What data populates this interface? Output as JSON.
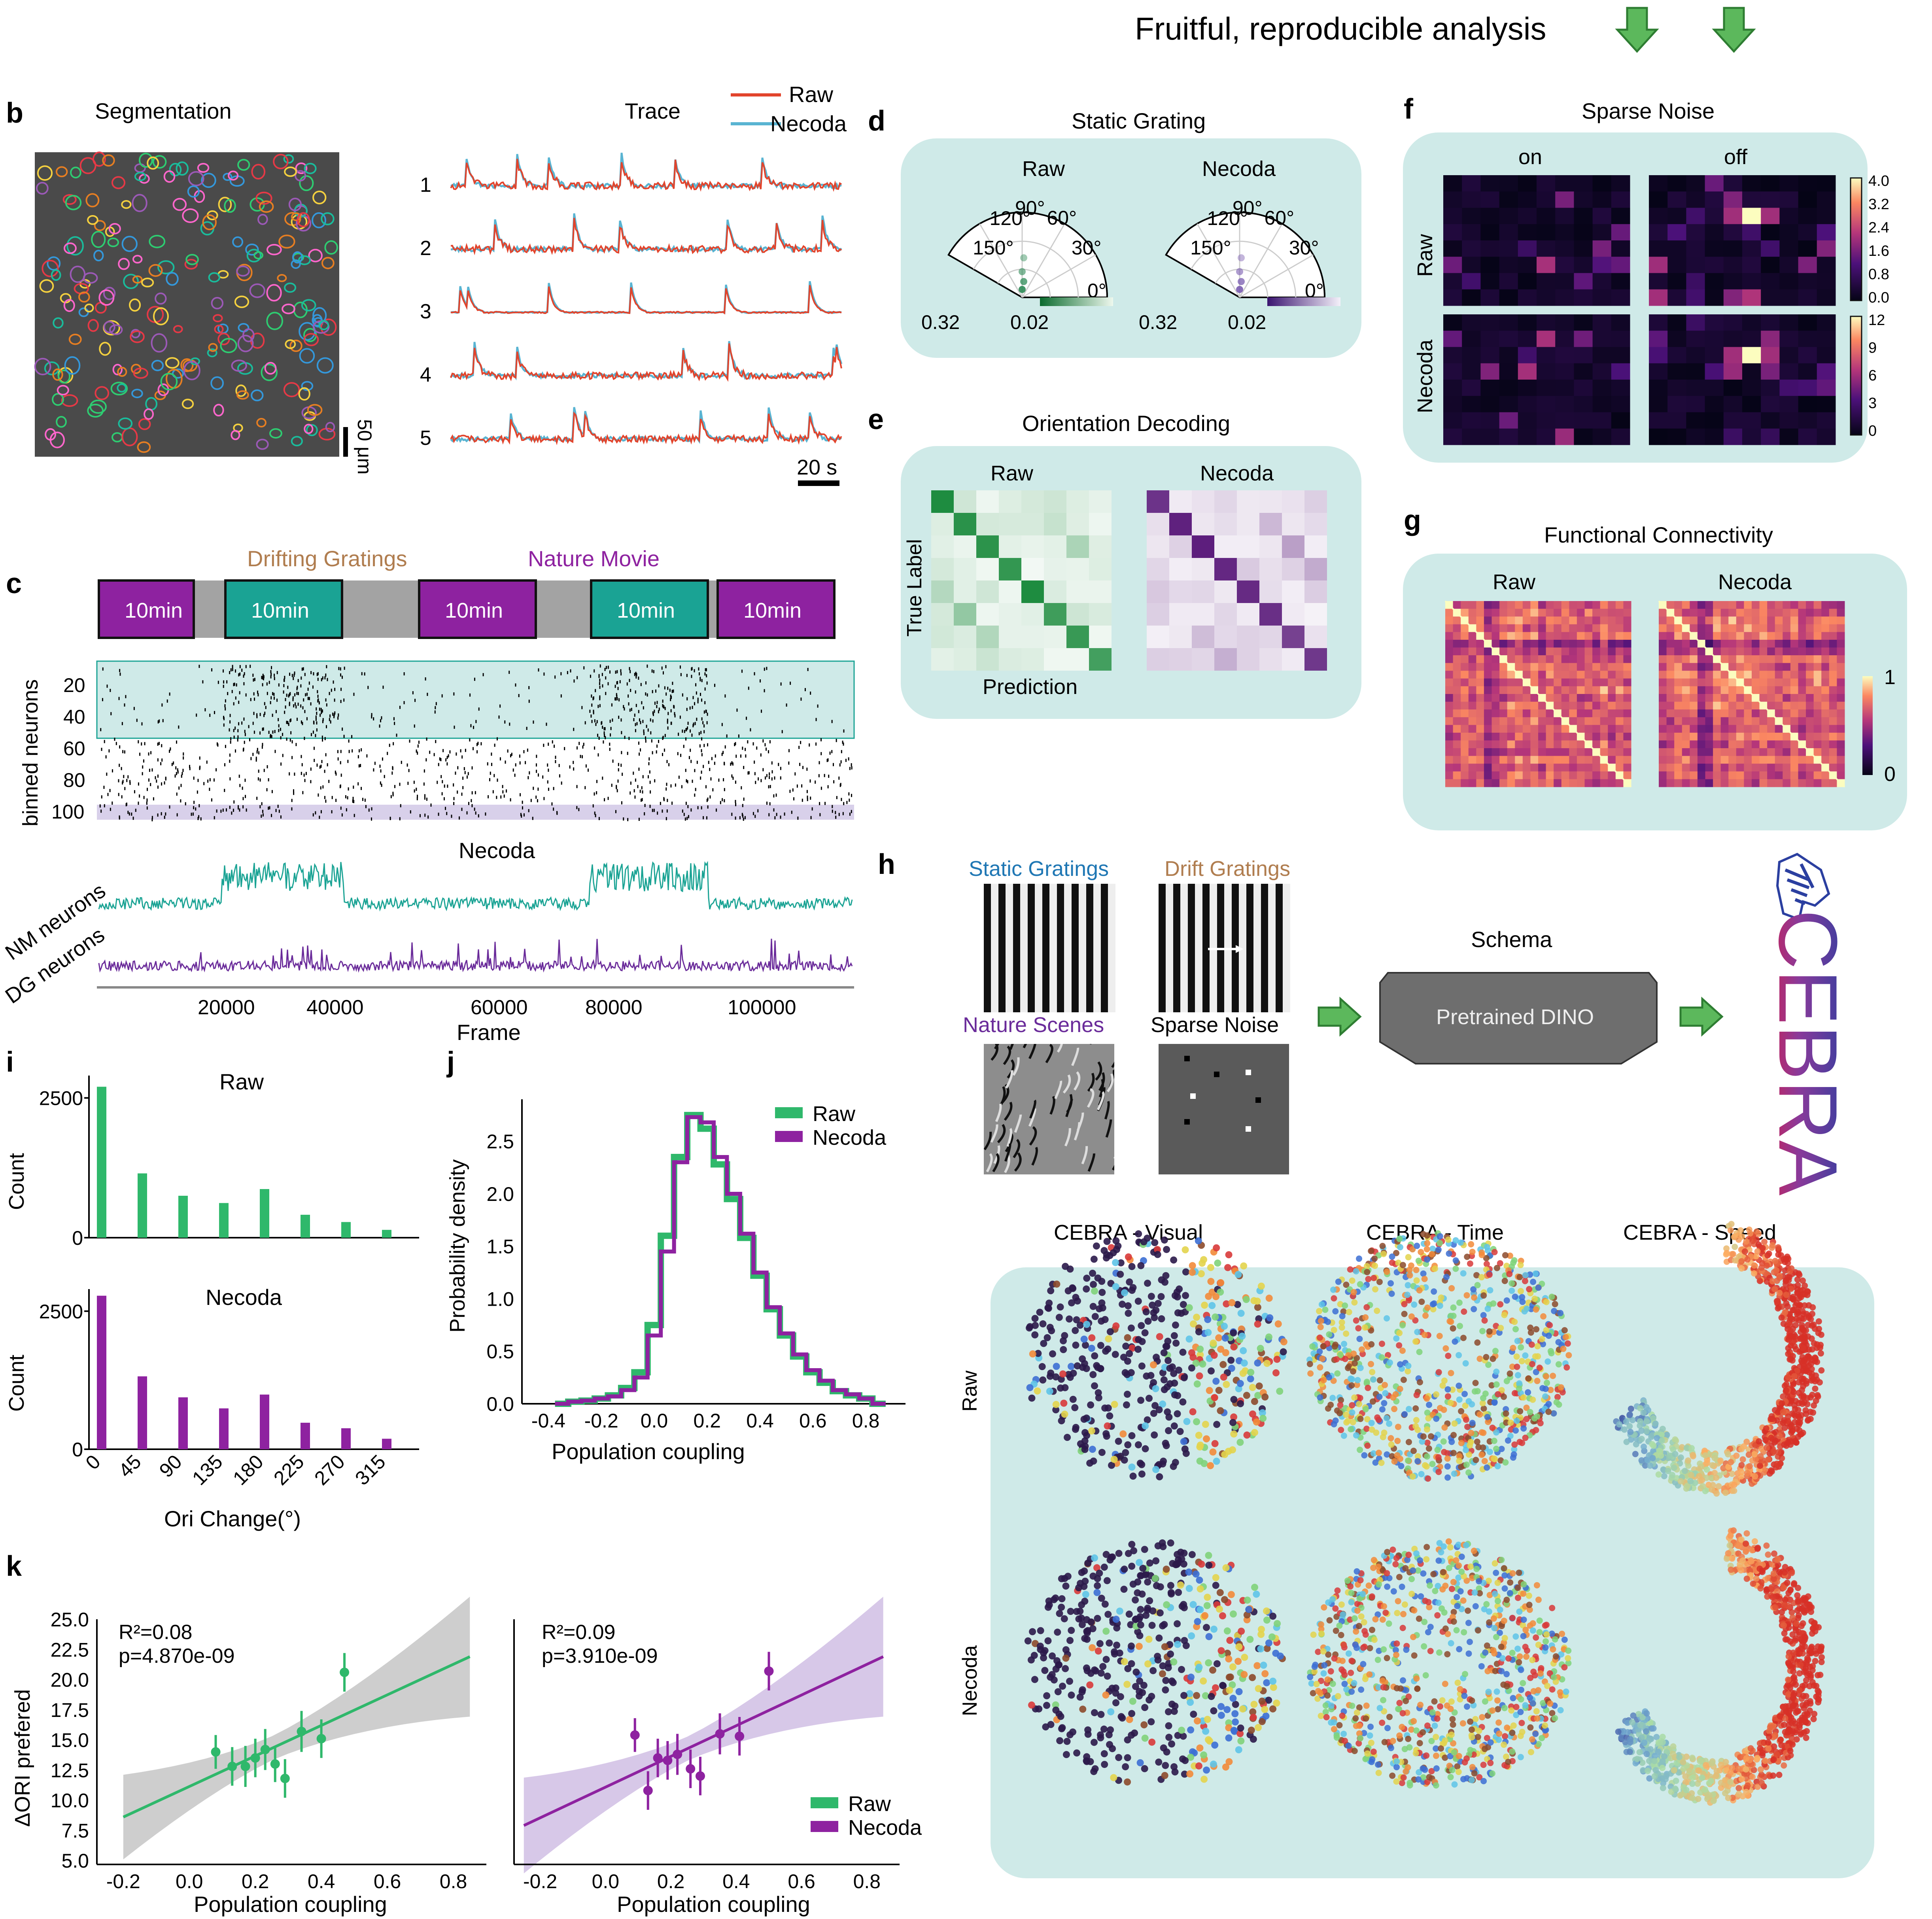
{
  "header": {
    "text": "Fruitful, reproducible analysis"
  },
  "legend_labels": {
    "raw": "Raw",
    "necoda": "Necoda"
  },
  "colors": {
    "raw_green": "#2fb86b",
    "necoda_purple": "#8e22a0",
    "panel_bg": "#cfeae8",
    "trace_red": "#e2442c",
    "trace_blue": "#59b4d2",
    "teal": "#1aa394",
    "purple": "#6a2b9a",
    "arrow_green": "#5cb85c"
  },
  "panel_b": {
    "letter": "b",
    "seg_title": "Segmentation",
    "trace_title": "Trace",
    "scalebar_um": "50 μm",
    "scalebar_s": "20 s",
    "trace_ids": [
      "1",
      "2",
      "3",
      "4",
      "5"
    ]
  },
  "panel_c": {
    "letter": "c",
    "blocks": [
      "10min",
      "10min",
      "10min",
      "10min",
      "10min"
    ],
    "drifting_label": "Drifting Gratings",
    "nature_label": "Nature Movie",
    "raster_ylabel": "binned neurons",
    "raster_yticks": [
      "20",
      "40",
      "60",
      "80",
      "100"
    ],
    "necoda_title": "Necoda",
    "nm_label": "NM neurons",
    "dg_label": "DG neurons",
    "xticks": [
      "20000",
      "40000",
      "60000",
      "80000",
      "100000"
    ],
    "xlabel": "Frame"
  },
  "panel_d": {
    "letter": "d",
    "title": "Static Grating",
    "angles": [
      "0°",
      "30°",
      "60°",
      "90°",
      "120°",
      "150°"
    ],
    "radial": [
      "0.32",
      "0.02"
    ]
  },
  "panel_e": {
    "letter": "e",
    "title": "Orientation Decoding",
    "ylabel": "True Label",
    "xlabel": "Prediction"
  },
  "panel_f": {
    "letter": "f",
    "title": "Sparse Noise",
    "on": "on",
    "off": "off",
    "cbar_raw": [
      "4.0",
      "3.2",
      "2.4",
      "1.6",
      "0.8",
      "0.0"
    ],
    "cbar_necoda": [
      "12",
      "9",
      "6",
      "3",
      "0"
    ]
  },
  "panel_g": {
    "letter": "g",
    "title": "Functional Connectivity",
    "cbar": [
      "1",
      "0"
    ]
  },
  "panel_h": {
    "letter": "h",
    "static": "Static Gratings",
    "drift": "Drift Gratings",
    "nature": "Nature Scenes",
    "sparse": "Sparse Noise",
    "schema": "Schema",
    "model": "Pretrained DINO",
    "logo": "CEBRA"
  },
  "panel_cebra": {
    "titles": [
      "CEBRA - Visual",
      "CEBRA - Time",
      "CEBRA - Speed"
    ]
  },
  "chart_data": [
    {
      "id": "i-raw",
      "type": "bar",
      "title": "Raw",
      "ylabel": "Count",
      "xlabel": "Ori Change(°)",
      "categories": [
        "0",
        "45",
        "90",
        "135",
        "180",
        "225",
        "270",
        "315"
      ],
      "values": [
        2700,
        1150,
        750,
        620,
        870,
        410,
        280,
        140
      ],
      "yticks": [
        "0",
        "2500"
      ],
      "ylim": [
        0,
        2900
      ]
    },
    {
      "id": "i-necoda",
      "type": "bar",
      "title": "Necoda",
      "ylabel": "Count",
      "xlabel": "Ori Change(°)",
      "categories": [
        "0",
        "45",
        "90",
        "135",
        "180",
        "225",
        "270",
        "315"
      ],
      "values": [
        2780,
        1320,
        940,
        740,
        990,
        480,
        380,
        190
      ],
      "yticks": [
        "0",
        "2500"
      ],
      "ylim": [
        0,
        2900
      ]
    },
    {
      "id": "j",
      "type": "line",
      "ylabel": "Probability density",
      "xlabel": "Population coupling",
      "xticks": [
        "-0.4",
        "-0.2",
        "0.0",
        "0.2",
        "0.4",
        "0.6",
        "0.8"
      ],
      "yticks": [
        "0.0",
        "0.5",
        "1.0",
        "1.5",
        "2.0",
        "2.5"
      ],
      "xlim": [
        -0.5,
        0.95
      ],
      "ylim": [
        0,
        2.9
      ],
      "x": [
        -0.35,
        -0.3,
        -0.25,
        -0.2,
        -0.15,
        -0.1,
        -0.05,
        0.0,
        0.05,
        0.1,
        0.15,
        0.2,
        0.25,
        0.3,
        0.35,
        0.4,
        0.45,
        0.5,
        0.55,
        0.6,
        0.65,
        0.7,
        0.75,
        0.8,
        0.85
      ],
      "series": [
        {
          "name": "Raw",
          "values": [
            0.0,
            0.02,
            0.03,
            0.05,
            0.08,
            0.15,
            0.3,
            0.75,
            1.6,
            2.35,
            2.75,
            2.62,
            2.28,
            1.95,
            1.58,
            1.22,
            0.9,
            0.65,
            0.45,
            0.3,
            0.2,
            0.12,
            0.08,
            0.05,
            0.0
          ]
        },
        {
          "name": "Necoda",
          "values": [
            0.0,
            0.02,
            0.03,
            0.05,
            0.07,
            0.13,
            0.25,
            0.65,
            1.45,
            2.3,
            2.73,
            2.68,
            2.35,
            2.0,
            1.62,
            1.25,
            0.92,
            0.67,
            0.47,
            0.32,
            0.22,
            0.13,
            0.09,
            0.05,
            0.0
          ]
        }
      ]
    },
    {
      "id": "k-raw",
      "type": "scatter",
      "ylabel": "ΔORI prefered",
      "xlabel": "Population coupling",
      "annotation": [
        "R²=0.08",
        "p=4.870e-09"
      ],
      "xticks": [
        "-0.2",
        "0.0",
        "0.2",
        "0.4",
        "0.6",
        "0.8"
      ],
      "yticks": [
        "5.0",
        "7.5",
        "10.0",
        "12.5",
        "15.0",
        "17.5",
        "20.0",
        "22.5",
        "25.0"
      ],
      "xlim": [
        -0.28,
        0.9
      ],
      "ylim": [
        5,
        25
      ],
      "x": [
        0.08,
        0.13,
        0.17,
        0.2,
        0.23,
        0.26,
        0.29,
        0.34,
        0.4,
        0.47
      ],
      "y": [
        14.0,
        12.8,
        12.8,
        13.5,
        14.2,
        13.0,
        11.8,
        15.7,
        15.1,
        20.6
      ],
      "err": [
        1.4,
        1.6,
        1.7,
        1.6,
        1.7,
        1.5,
        1.6,
        1.7,
        1.6,
        1.6
      ],
      "fit": [
        [
          -0.2,
          8.6
        ],
        [
          0.85,
          21.9
        ]
      ]
    },
    {
      "id": "k-necoda",
      "type": "scatter",
      "xlabel": "Population coupling",
      "annotation": [
        "R²=0.09",
        "p=3.910e-09"
      ],
      "xticks": [
        "-0.2",
        "0.0",
        "0.2",
        "0.4",
        "0.6",
        "0.8"
      ],
      "xlim": [
        -0.28,
        0.9
      ],
      "ylim": [
        5,
        25
      ],
      "x": [
        0.09,
        0.13,
        0.16,
        0.19,
        0.22,
        0.26,
        0.29,
        0.35,
        0.41,
        0.5
      ],
      "y": [
        15.4,
        10.8,
        13.5,
        13.3,
        13.8,
        12.6,
        12.0,
        15.5,
        15.3,
        20.7
      ],
      "err": [
        1.4,
        1.6,
        1.6,
        1.6,
        1.7,
        1.6,
        1.6,
        1.7,
        1.6,
        1.6
      ],
      "fit": [
        [
          -0.25,
          7.9
        ],
        [
          0.85,
          21.9
        ]
      ]
    }
  ]
}
